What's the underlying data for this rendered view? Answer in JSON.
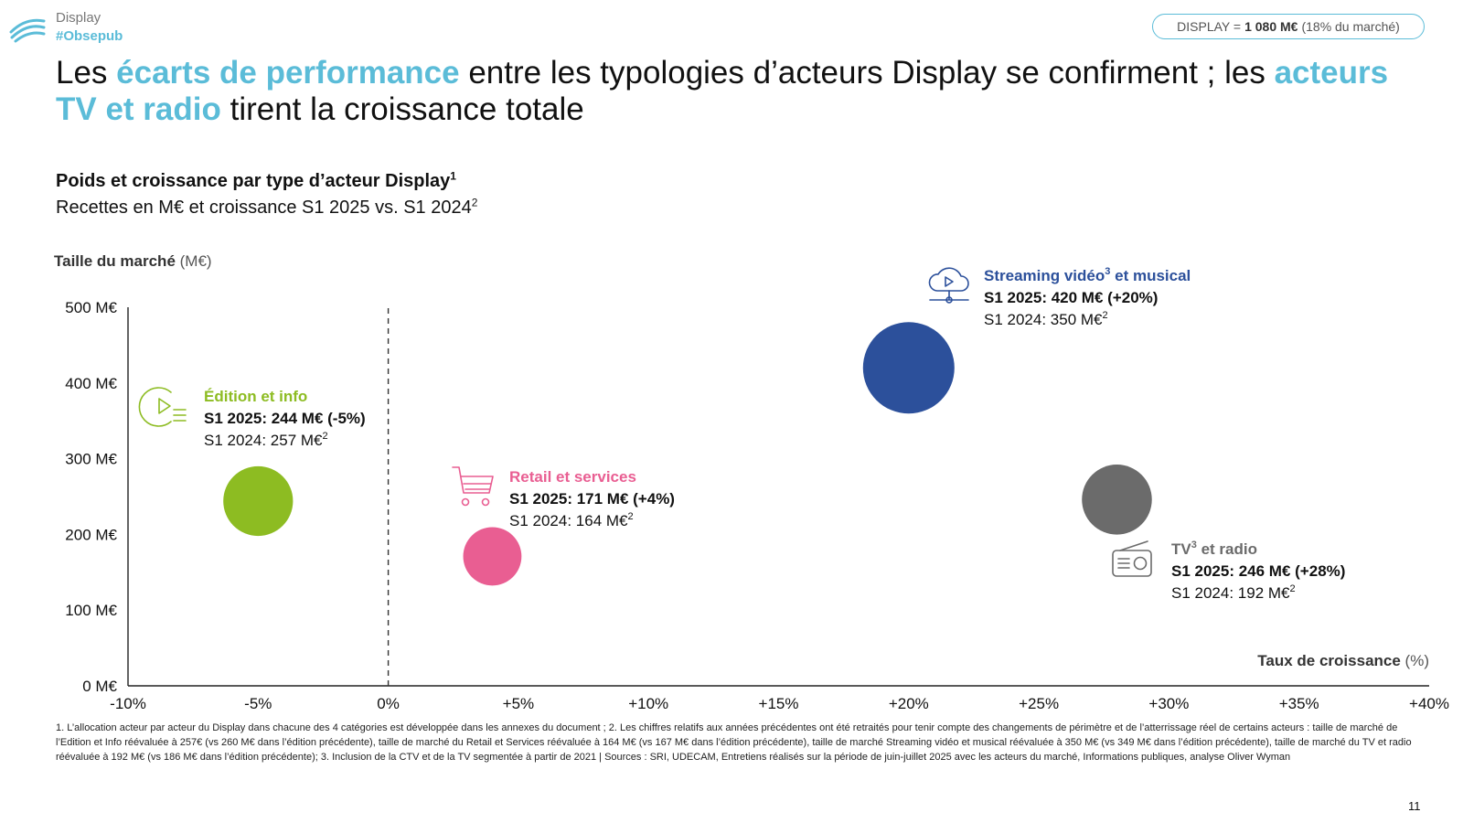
{
  "brand": {
    "line1": "Display",
    "line2": "#Obsepub"
  },
  "badge": {
    "prefix": "DISPLAY =",
    "value": "1 080 M€",
    "suffix": "(18% du marché)"
  },
  "title": {
    "p1": "Les ",
    "h1": "écarts de performance",
    "p2": " entre les typologies d’acteurs Display se confirment ; les ",
    "h2": "acteurs TV et radio",
    "p3": " tirent la croissance totale"
  },
  "subtitle": {
    "line1": "Poids et croissance par type d’acteur Display",
    "line1_sup": "1",
    "line2": "Recettes en M€ et croissance S1 2025 vs. S1 2024",
    "line2_sup": "2"
  },
  "colors": {
    "accent": "#5bbcd8"
  },
  "chart_data": {
    "type": "scatter",
    "ylabel": {
      "bold": "Taille du marché",
      "unit": "(M€)"
    },
    "xlabel": {
      "bold": "Taux de croissance",
      "unit": "(%)"
    },
    "xlim": [
      -10,
      40
    ],
    "ylim": [
      0,
      500
    ],
    "x_ticks": [
      -10,
      -5,
      0,
      5,
      10,
      15,
      20,
      25,
      30,
      35,
      40
    ],
    "x_tick_labels": [
      "-10%",
      "-5%",
      "0%",
      "+5%",
      "+10%",
      "+15%",
      "+20%",
      "+25%",
      "+30%",
      "+35%",
      "+40%"
    ],
    "y_ticks": [
      0,
      100,
      200,
      300,
      400,
      500
    ],
    "y_tick_labels": [
      "0 M€",
      "100 M€",
      "200 M€",
      "300 M€",
      "400 M€",
      "500 M€"
    ],
    "reference_line_x": 0,
    "grid": false,
    "series": [
      {
        "name": "Édition et info",
        "x": -5,
        "y": 244,
        "color": "#8dbc22",
        "icon": "video-list-icon",
        "line2": "S1 2025: 244 M€ (-5%)",
        "line3": "S1 2024: 257 M€",
        "line3_sup": "2"
      },
      {
        "name": "Retail et services",
        "x": 4,
        "y": 171,
        "color": "#e95e92",
        "icon": "shopping-cart-icon",
        "line2": "S1 2025: 171 M€ (+4%)",
        "line3": "S1 2024: 164 M€",
        "line3_sup": "2"
      },
      {
        "name": "Streaming vidéo",
        "name_sup": "3",
        "name_suffix": " et musical",
        "x": 20,
        "y": 420,
        "color": "#2c509b",
        "icon": "cloud-play-icon",
        "line2": "S1 2025: 420 M€ (+20%)",
        "line3": "S1 2024: 350 M€",
        "line3_sup": "2"
      },
      {
        "name": "TV",
        "name_sup": "3",
        "name_suffix": " et radio",
        "x": 28,
        "y": 246,
        "color": "#6b6b6b",
        "icon": "radio-icon",
        "line2": "S1 2025: 246 M€ (+28%)",
        "line3": "S1 2024: 192 M€",
        "line3_sup": "2"
      }
    ]
  },
  "footnote": "1. L’allocation acteur par acteur du Display dans chacune des 4 catégories est développée dans les annexes du document ; 2. Les chiffres relatifs aux années précédentes ont été retraités pour tenir compte des changements de périmètre et de l’atterrissage réel de certains acteurs : taille de marché de l’Edition et Info réévaluée à 257€ (vs 260 M€ dans l’édition précédente), taille de marché du Retail et Services réévaluée à 164 M€ (vs 167 M€ dans l’édition précédente), taille de marché Streaming vidéo et musical réévaluée à 350 M€ (vs 349 M€ dans l’édition précédente), taille de marché du TV et radio réévaluée à 192 M€ (vs 186 M€ dans l’édition précédente); 3. Inclusion de la CTV et de la TV segmentée à partir de 2021 | Sources : SRI, UDECAM, Entretiens réalisés sur la période de juin-juillet 2025 avec les acteurs du marché, Informations publiques, analyse Oliver Wyman",
  "page_number": "11"
}
